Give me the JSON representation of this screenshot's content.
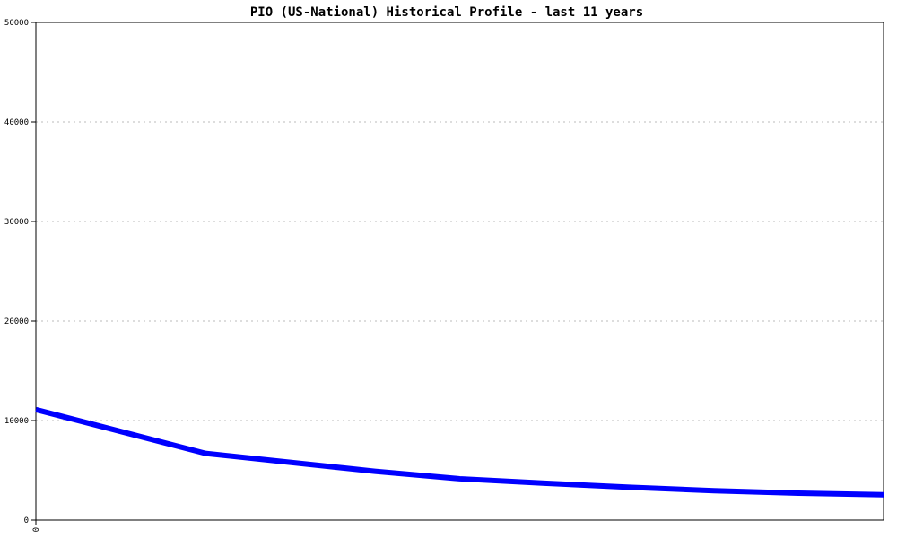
{
  "chart_data": {
    "type": "line",
    "title": "PIO (US-National) Historical Profile - last 11 years",
    "xlabel": "",
    "ylabel": "",
    "x_tick_labels": [
      "0"
    ],
    "y_ticks": [
      0,
      10000,
      20000,
      30000,
      40000,
      50000
    ],
    "ylim": [
      0,
      50000
    ],
    "grid": true,
    "line_color": "#0000ff",
    "series": [
      {
        "values": [
          11100,
          8900,
          6700,
          5800,
          4900,
          4150,
          3700,
          3300,
          2950,
          2700,
          2550
        ]
      }
    ]
  }
}
